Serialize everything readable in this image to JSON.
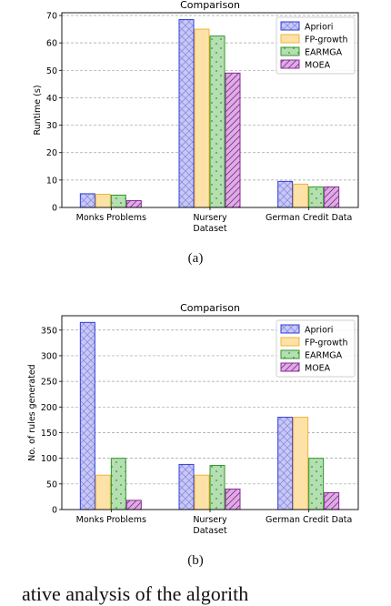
{
  "charts": [
    {
      "caption": "(a)",
      "chart_data": {
        "type": "bar",
        "title": "Comparison",
        "xlabel": "Dataset",
        "ylabel": "Runtime (s)",
        "categories": [
          "Monks Problems",
          "Nursery",
          "German Credit Data"
        ],
        "ylim": [
          0,
          71
        ],
        "yticks": [
          0,
          10,
          20,
          30,
          40,
          50,
          60,
          70
        ],
        "grid": "horizontal dashed",
        "legend_position": "top-right",
        "series": [
          {
            "name": "Apriori",
            "values": [
              5,
              68.5,
              9.5
            ]
          },
          {
            "name": "FP-growth",
            "values": [
              4.8,
              65,
              8.5
            ]
          },
          {
            "name": "EARMGA",
            "values": [
              4.5,
              62.5,
              7.5
            ]
          },
          {
            "name": "MOEA",
            "values": [
              2.5,
              49,
              7.5
            ]
          }
        ]
      }
    },
    {
      "caption": "(b)",
      "chart_data": {
        "type": "bar",
        "title": "Comparison",
        "xlabel": "Dataset",
        "ylabel": "No. of rules generated",
        "categories": [
          "Monks Problems",
          "Nursery",
          "German Credit Data"
        ],
        "ylim": [
          0,
          378
        ],
        "yticks": [
          0,
          50,
          100,
          150,
          200,
          250,
          300,
          350
        ],
        "grid": "horizontal dashed",
        "legend_position": "top-right",
        "series": [
          {
            "name": "Apriori",
            "values": [
              365,
              88,
              180
            ]
          },
          {
            "name": "FP-growth",
            "values": [
              67,
              67,
              180
            ]
          },
          {
            "name": "EARMGA",
            "values": [
              100,
              86,
              100
            ]
          },
          {
            "name": "MOEA",
            "values": [
              18,
              40,
              33
            ]
          }
        ]
      }
    }
  ],
  "series_style": [
    {
      "fill": "#c8c8f4",
      "stroke": "#2f3fd6",
      "hatch": "cross",
      "hatch_color": "#8c8ce6"
    },
    {
      "fill": "#fde2a8",
      "stroke": "#f1b13a",
      "hatch": "none",
      "hatch_color": "#f1b13a"
    },
    {
      "fill": "#b4dfb0",
      "stroke": "#2e962a",
      "hatch": "dots",
      "hatch_color": "#3f8a3a"
    },
    {
      "fill": "#dcaee0",
      "stroke": "#8a2a9c",
      "hatch": "diagonal",
      "hatch_color": "#8a2a9c"
    }
  ],
  "footer_text": "ative analysis of the algorith"
}
